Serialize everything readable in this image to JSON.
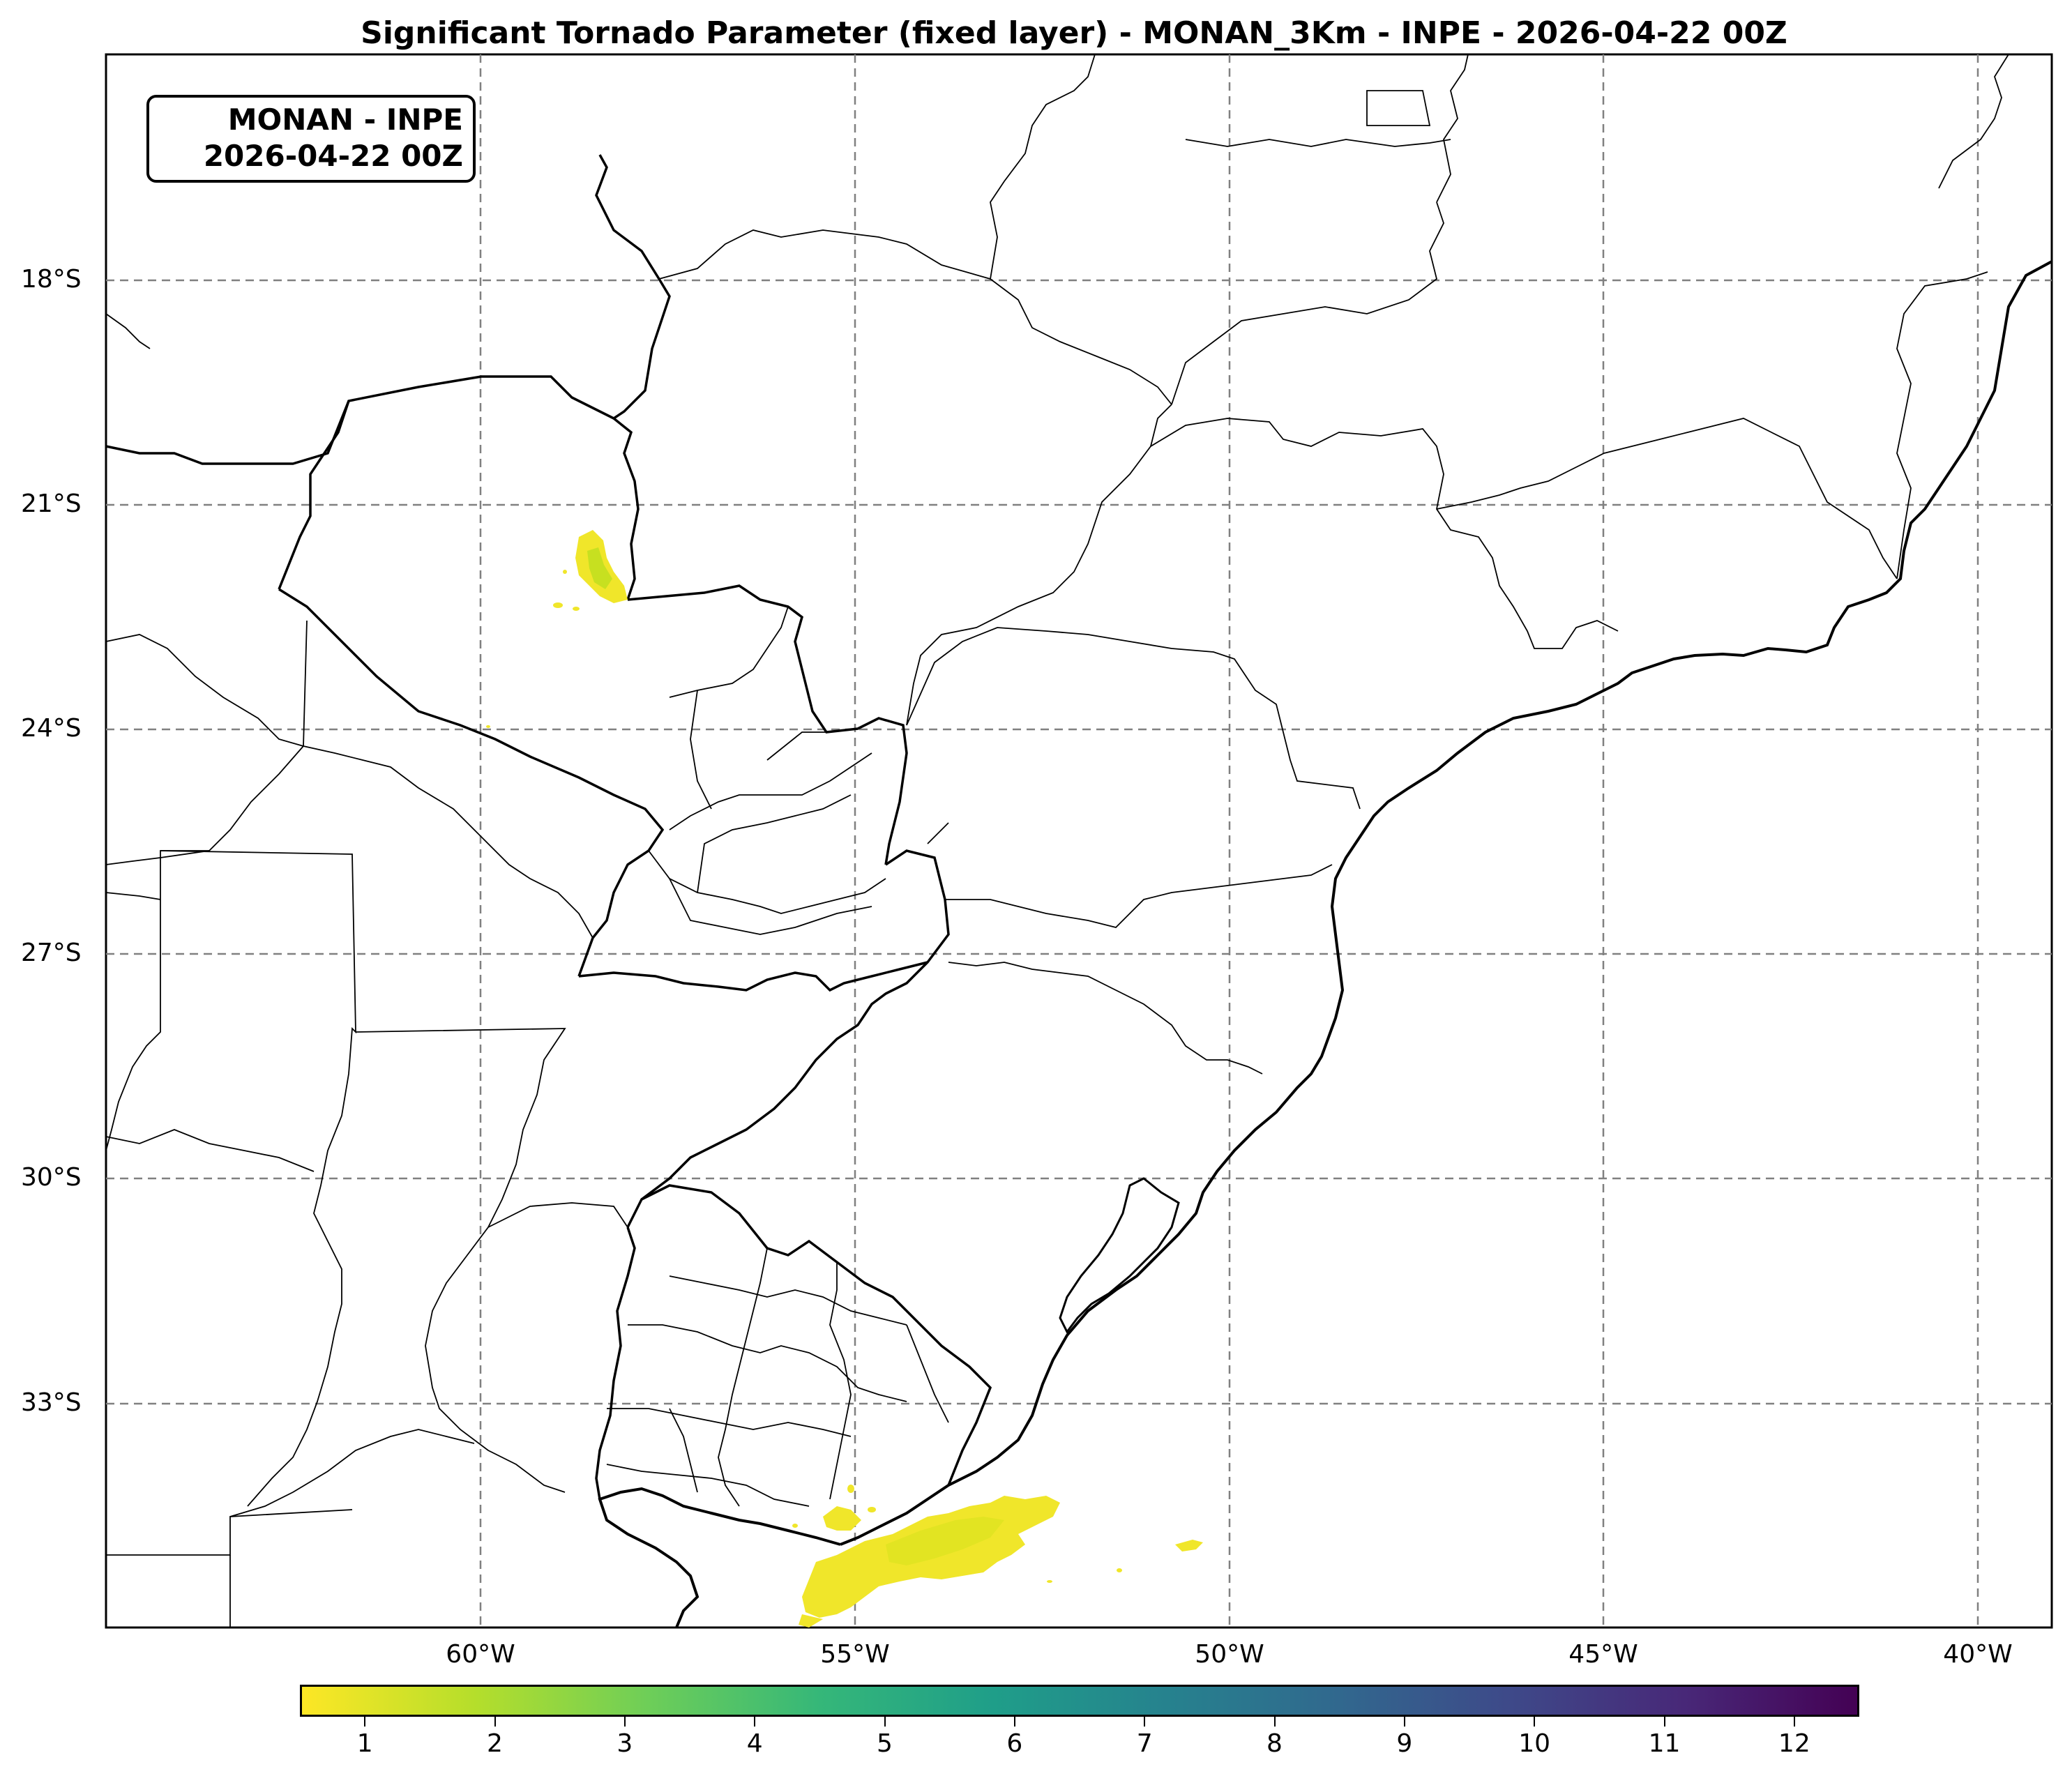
{
  "title": "Significant Tornado Parameter (fixed layer) - MONAN_3Km - INPE - 2026-04-22 00Z",
  "infobox": {
    "line1": "MONAN - INPE",
    "line2": "2026-04-22 00Z"
  },
  "latitude_labels": [
    "18°S",
    "21°S",
    "24°S",
    "27°S",
    "30°S",
    "33°S"
  ],
  "longitude_labels": [
    "60°W",
    "55°W",
    "50°W",
    "45°W",
    "40°W"
  ],
  "colorbar": {
    "ticks": [
      "1",
      "2",
      "3",
      "4",
      "5",
      "6",
      "7",
      "8",
      "9",
      "10",
      "11",
      "12"
    ],
    "colors": [
      "#fde725",
      "#b5de2b",
      "#6ece58",
      "#35b779",
      "#1f9e89",
      "#26828e",
      "#31688e",
      "#3e4989",
      "#482878",
      "#440154"
    ]
  },
  "colors": {
    "stp_weak": "#f0e62a",
    "stp_moderate": "#c7e020",
    "gridline": "#808080"
  }
}
